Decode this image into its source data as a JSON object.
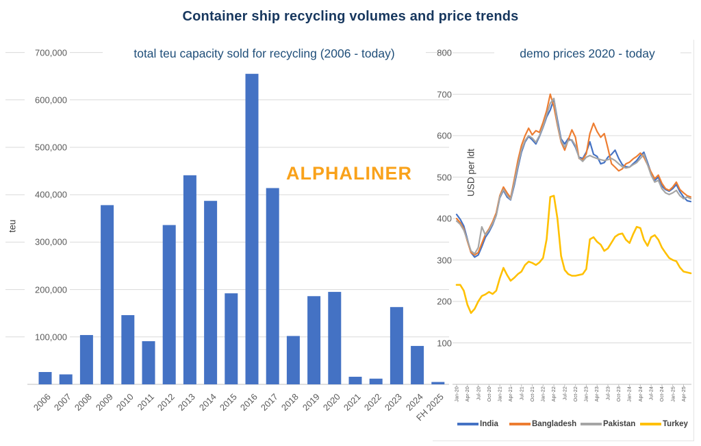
{
  "title": "Container ship recycling volumes and price trends",
  "watermark": {
    "text": "ALPHALINER",
    "color": "#F9A21B"
  },
  "colors": {
    "bar": "#4472C4",
    "gridline": "#D9D9D9",
    "axisline": "#BFBFBF",
    "tick_text": "#595959",
    "title_text": "#17375E",
    "subtitle_text": "#1F4E79"
  },
  "chart_data": [
    {
      "type": "bar",
      "title": "total teu capacity sold for recycling (2006 - today)",
      "xlabel": "",
      "ylabel": "teu",
      "ylim": [
        0,
        700000
      ],
      "grid": true,
      "bar_color": "#4472C4",
      "yticks": [
        100000,
        200000,
        300000,
        400000,
        500000,
        600000,
        700000
      ],
      "ytick_labels": [
        "100,000",
        "200,000",
        "300,000",
        "400,000",
        "500,000",
        "600,000",
        "700,000"
      ],
      "categories": [
        "2006",
        "2007",
        "2008",
        "2009",
        "2010",
        "2011",
        "2012",
        "2013",
        "2014",
        "2015",
        "2016",
        "2017",
        "2018",
        "2019",
        "2020",
        "2021",
        "2022",
        "2023",
        "2024",
        "FH 2025"
      ],
      "values": [
        26000,
        21000,
        104000,
        378000,
        146000,
        91000,
        336000,
        441000,
        387000,
        192000,
        655000,
        414000,
        102000,
        186000,
        195000,
        16000,
        12000,
        163000,
        81000,
        5000
      ]
    },
    {
      "type": "line",
      "title": "demo prices 2020 - today",
      "xlabel": "",
      "ylabel": "USD per ldt",
      "ylim": [
        0,
        800
      ],
      "grid": true,
      "legend_position": "bottom",
      "yticks": [
        100,
        200,
        300,
        400,
        500,
        600,
        700,
        800
      ],
      "ytick_labels": [
        "100",
        "200",
        "300",
        "400",
        "500",
        "600",
        "700",
        "800"
      ],
      "xtick_labels": [
        "Jan-20",
        "Apr-20",
        "Jul-20",
        "Oct-20",
        "Jan-21",
        "Apr-21",
        "Jul-21",
        "Oct-21",
        "Jan-22",
        "Apr-22",
        "Jul-22",
        "Oct-22",
        "Jan-23",
        "Apr-23",
        "Jul-23",
        "Oct-23",
        "Jan-24",
        "Apr-24",
        "Jul-24",
        "Oct-24",
        "Jan-25",
        "Apr-25"
      ],
      "x_months": "monthly from Jan-2020 to Jun-2025",
      "series": [
        {
          "name": "India",
          "color": "#4472C4",
          "values": [
            410,
            398,
            382,
            350,
            318,
            307,
            312,
            332,
            355,
            368,
            385,
            408,
            450,
            468,
            452,
            445,
            480,
            522,
            560,
            585,
            598,
            590,
            580,
            598,
            620,
            645,
            662,
            688,
            638,
            592,
            580,
            593,
            588,
            572,
            548,
            545,
            560,
            585,
            555,
            550,
            532,
            535,
            548,
            555,
            565,
            545,
            530,
            525,
            524,
            532,
            540,
            552,
            560,
            535,
            510,
            492,
            500,
            478,
            470,
            466,
            472,
            482,
            465,
            452,
            443,
            441
          ]
        },
        {
          "name": "Bangladesh",
          "color": "#ED7D31",
          "values": [
            400,
            390,
            375,
            345,
            318,
            312,
            318,
            340,
            362,
            375,
            392,
            414,
            455,
            476,
            462,
            450,
            494,
            540,
            576,
            600,
            618,
            602,
            612,
            608,
            632,
            660,
            700,
            670,
            625,
            585,
            565,
            590,
            614,
            596,
            545,
            542,
            556,
            605,
            630,
            610,
            596,
            605,
            570,
            532,
            524,
            515,
            520,
            532,
            536,
            544,
            550,
            558,
            548,
            530,
            512,
            496,
            505,
            485,
            472,
            468,
            476,
            488,
            470,
            462,
            455,
            452
          ]
        },
        {
          "name": "Pakistan",
          "color": "#A5A5A5",
          "values": [
            394,
            386,
            372,
            348,
            322,
            315,
            330,
            380,
            360,
            372,
            388,
            408,
            452,
            470,
            456,
            446,
            486,
            528,
            565,
            588,
            600,
            594,
            584,
            600,
            622,
            650,
            678,
            690,
            630,
            588,
            572,
            588,
            590,
            576,
            546,
            538,
            548,
            552,
            548,
            545,
            542,
            540,
            542,
            545,
            540,
            532,
            525,
            522,
            524,
            530,
            535,
            545,
            555,
            530,
            505,
            488,
            492,
            472,
            462,
            458,
            462,
            468,
            455,
            448,
            452,
            448
          ]
        },
        {
          "name": "Turkey",
          "color": "#FFC000",
          "values": [
            240,
            240,
            226,
            192,
            172,
            182,
            200,
            213,
            217,
            223,
            218,
            226,
            256,
            281,
            264,
            250,
            257,
            266,
            272,
            288,
            296,
            293,
            288,
            294,
            305,
            350,
            452,
            455,
            400,
            310,
            276,
            266,
            262,
            262,
            264,
            266,
            278,
            350,
            355,
            344,
            337,
            322,
            328,
            342,
            356,
            362,
            364,
            349,
            341,
            362,
            380,
            377,
            349,
            334,
            355,
            360,
            349,
            330,
            317,
            305,
            300,
            297,
            282,
            272,
            270,
            268
          ]
        }
      ]
    }
  ]
}
